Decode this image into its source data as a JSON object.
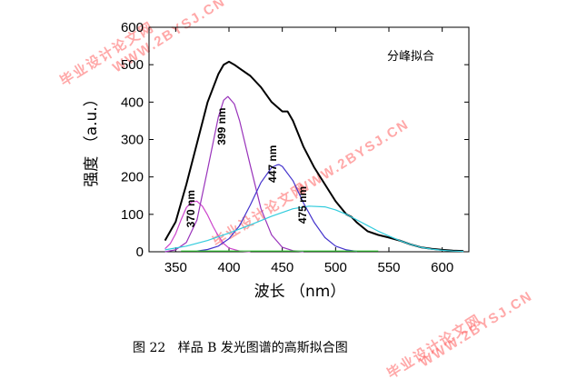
{
  "caption": "图 22   样品 B 发光图谱的高斯拟合图",
  "watermarks": [
    "毕业设计论文网",
    "WWW.2BYSJ.CN"
  ],
  "chart_data": {
    "type": "line",
    "inset_label": "分峰拟合",
    "xlabel": "波长 （nm）",
    "ylabel": "强度 （a.u.）",
    "xlim": [
      325,
      625
    ],
    "ylim": [
      0,
      600
    ],
    "xticks": [
      350,
      400,
      450,
      500,
      550,
      600
    ],
    "yticks": [
      0,
      100,
      200,
      300,
      400,
      500,
      600
    ],
    "peak_labels": [
      {
        "text": "370 nm",
        "x": 370,
        "y": 115
      },
      {
        "text": "399 nm",
        "x": 399,
        "y": 335
      },
      {
        "text": "447 nm",
        "x": 447,
        "y": 235
      },
      {
        "text": "475 nm",
        "x": 475,
        "y": 125
      }
    ],
    "series": [
      {
        "color": "#000000",
        "width": 2,
        "x": [
          340,
          350,
          360,
          370,
          380,
          390,
          395,
          400,
          405,
          410,
          420,
          430,
          440,
          450,
          455,
          460,
          470,
          480,
          490,
          500,
          510,
          515,
          520,
          530,
          540,
          550,
          560,
          570,
          580,
          590,
          600,
          610,
          620
        ],
        "y": [
          30,
          80,
          180,
          290,
          400,
          475,
          500,
          508,
          500,
          490,
          470,
          440,
          400,
          375,
          375,
          350,
          280,
          225,
          180,
          135,
          100,
          93,
          78,
          55,
          45,
          38,
          30,
          20,
          12,
          8,
          5,
          3,
          2
        ]
      },
      {
        "color": "#cc44cc",
        "width": 1.2,
        "x": [
          340,
          345,
          350,
          355,
          360,
          365,
          370,
          375,
          380,
          385,
          390,
          395,
          400,
          410,
          420
        ],
        "y": [
          8,
          22,
          48,
          85,
          118,
          133,
          135,
          122,
          98,
          68,
          42,
          22,
          10,
          2,
          0
        ]
      },
      {
        "color": "#9933bb",
        "width": 1.2,
        "x": [
          340,
          350,
          360,
          370,
          380,
          390,
          395,
          399,
          405,
          410,
          420,
          430,
          440,
          450,
          460,
          470
        ],
        "y": [
          0,
          5,
          25,
          85,
          220,
          360,
          405,
          415,
          395,
          350,
          230,
          115,
          45,
          12,
          3,
          0
        ]
      },
      {
        "color": "#4433cc",
        "width": 1.2,
        "x": [
          370,
          380,
          390,
          400,
          410,
          420,
          430,
          440,
          445,
          447,
          450,
          460,
          470,
          480,
          490,
          500,
          510,
          520
        ],
        "y": [
          2,
          6,
          15,
          35,
          70,
          125,
          185,
          225,
          232,
          233,
          228,
          190,
          130,
          78,
          38,
          15,
          5,
          1
        ]
      },
      {
        "color": "#33ccdd",
        "width": 1.2,
        "x": [
          340,
          360,
          380,
          400,
          420,
          440,
          460,
          475,
          490,
          500,
          510,
          520,
          530,
          540,
          550,
          560,
          570,
          580,
          590,
          600,
          610,
          620
        ],
        "y": [
          5,
          15,
          30,
          50,
          72,
          95,
          115,
          122,
          120,
          112,
          100,
          85,
          70,
          55,
          42,
          30,
          20,
          12,
          7,
          4,
          2,
          1
        ]
      },
      {
        "color": "#33cc33",
        "width": 1.2,
        "x": [
          355,
          400,
          450,
          500,
          540
        ],
        "y": [
          2,
          2,
          2,
          2,
          2
        ]
      }
    ]
  }
}
